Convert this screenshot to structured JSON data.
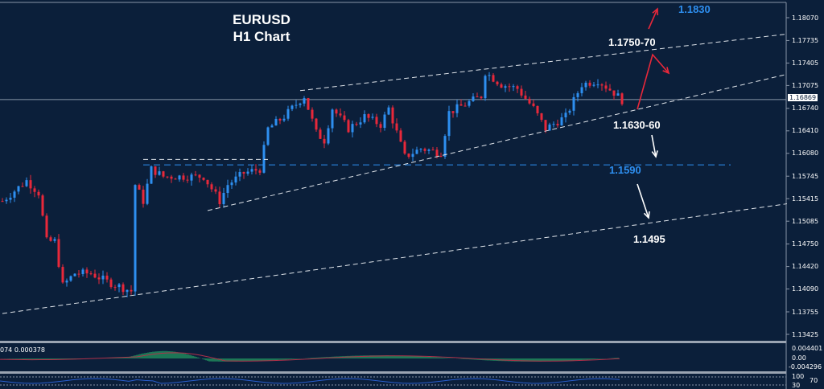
{
  "title": {
    "line1": "EURUSD",
    "line2": "H1 Chart"
  },
  "colors": {
    "background": "#0b1f3a",
    "bull": "#2e8ff0",
    "bear": "#e8283a",
    "level_blue": "#2e8ff0",
    "arrow_red": "#e8283a",
    "macd_hist": "#2ecc71",
    "macd_signal": "#b0304a",
    "rsi": "#2a5fd0"
  },
  "annotations": {
    "target_high": "1.1830",
    "resistance": "1.1750-70",
    "support": "1.1630-60",
    "support_level": "1.1590",
    "target_low": "1.1495"
  },
  "indicator": {
    "macd_label": "074 0.000378",
    "macd_axis": [
      "0.004401",
      "0.00",
      "-0.004296"
    ],
    "rsi_axis": [
      "100",
      "70",
      "30"
    ]
  },
  "chart_data": {
    "type": "candlestick",
    "symbol": "EURUSD",
    "timeframe": "H1",
    "ylim": [
      1.133,
      1.183
    ],
    "y_ticks": [
      "1.18070",
      "1.17735",
      "1.17405",
      "1.17075",
      "1.16740",
      "1.16410",
      "1.16080",
      "1.15745",
      "1.15415",
      "1.15085",
      "1.14750",
      "1.14420",
      "1.14090",
      "1.13755",
      "1.13425"
    ],
    "current_price": "1.16869",
    "price_path": [
      [
        0,
        1.1538
      ],
      [
        6,
        1.1568
      ],
      [
        9,
        1.155
      ],
      [
        11,
        1.1479
      ],
      [
        13,
        1.1479
      ],
      [
        15,
        1.1414
      ],
      [
        18,
        1.1432
      ],
      [
        22,
        1.1432
      ],
      [
        26,
        1.142
      ],
      [
        32,
        1.1406
      ],
      [
        33,
        1.1562
      ],
      [
        35,
        1.1538
      ],
      [
        37,
        1.1585
      ],
      [
        40,
        1.1574
      ],
      [
        46,
        1.1574
      ],
      [
        50,
        1.1574
      ],
      [
        54,
        1.1538
      ],
      [
        56,
        1.1562
      ],
      [
        60,
        1.1579
      ],
      [
        64,
        1.1585
      ],
      [
        66,
        1.1644
      ],
      [
        70,
        1.1662
      ],
      [
        75,
        1.1692
      ],
      [
        78,
        1.1638
      ],
      [
        80,
        1.1627
      ],
      [
        82,
        1.1674
      ],
      [
        86,
        1.1644
      ],
      [
        90,
        1.1662
      ],
      [
        94,
        1.165
      ],
      [
        96,
        1.1674
      ],
      [
        100,
        1.1603
      ],
      [
        104,
        1.1615
      ],
      [
        109,
        1.1609
      ],
      [
        111,
        1.1668
      ],
      [
        115,
        1.168
      ],
      [
        119,
        1.1692
      ],
      [
        120,
        1.1727
      ],
      [
        124,
        1.1709
      ],
      [
        128,
        1.1703
      ],
      [
        132,
        1.1674
      ],
      [
        135,
        1.1644
      ],
      [
        140,
        1.1662
      ],
      [
        144,
        1.1709
      ],
      [
        148,
        1.1715
      ],
      [
        152,
        1.1697
      ],
      [
        154,
        1.1686
      ]
    ],
    "trendlines": [
      {
        "from": [
          0,
          1.1373
        ],
        "to": [
          195,
          1.1534
        ],
        "style": "dashed"
      },
      {
        "from": [
          51,
          1.1524
        ],
        "to": [
          195,
          1.1724
        ],
        "style": "dashed"
      },
      {
        "from": [
          74,
          1.17
        ],
        "to": [
          195,
          1.1783
        ],
        "style": "dashed"
      },
      {
        "from": [
          35,
          1.1599
        ],
        "to": [
          66,
          1.1599
        ],
        "style": "dashed"
      }
    ],
    "levels": [
      {
        "price": 1.159,
        "from": 35,
        "to": 181,
        "color": "blue"
      }
    ]
  }
}
